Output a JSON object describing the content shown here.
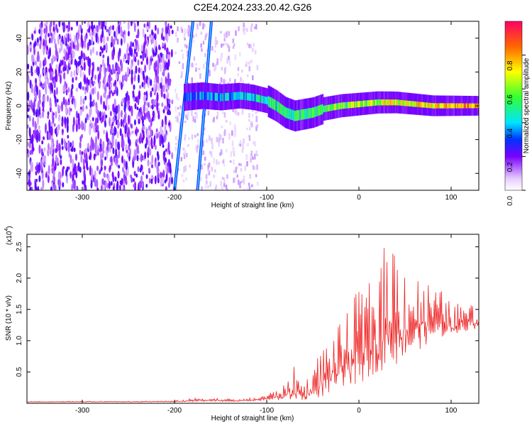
{
  "title": "C2E4.2024.233.20.42.G26",
  "chart_data": [
    {
      "type": "heatmap",
      "xlabel": "Height of straight line (km)",
      "ylabel": "Frequency (Hz)",
      "xlim": [
        -360,
        130
      ],
      "ylim": [
        -50,
        50
      ],
      "xticks": [
        -300,
        -200,
        -100,
        0,
        100
      ],
      "yticks": [
        -40,
        -20,
        0,
        20,
        40
      ],
      "colorbar": {
        "label": "Normalized spectral amplitude",
        "range": [
          0.0,
          1.0
        ],
        "ticks": [
          0.0,
          0.2,
          0.4,
          0.6,
          0.8
        ]
      },
      "ridge": [
        [
          -190,
          5
        ],
        [
          -170,
          6
        ],
        [
          -150,
          5
        ],
        [
          -130,
          6
        ],
        [
          -115,
          5
        ],
        [
          -100,
          3
        ],
        [
          -90,
          0
        ],
        [
          -80,
          -4
        ],
        [
          -70,
          -6
        ],
        [
          -60,
          -5
        ],
        [
          -50,
          -4
        ],
        [
          -40,
          -2
        ],
        [
          -20,
          0
        ],
        [
          0,
          1
        ],
        [
          20,
          2
        ],
        [
          40,
          2
        ],
        [
          60,
          1
        ],
        [
          80,
          0
        ],
        [
          100,
          0
        ],
        [
          130,
          0
        ]
      ],
      "streaks": [
        {
          "x_bottom": -200,
          "x_top": -180
        },
        {
          "x_bottom": -175,
          "x_top": -160
        }
      ]
    },
    {
      "type": "line",
      "xlabel": "Height of straight line (km)",
      "ylabel": "SNR (10 * v/v)",
      "y_multiplier": "(x10",
      "y_multiplier_exp": "4",
      "xlim": [
        -360,
        130
      ],
      "ylim": [
        0,
        2.7
      ],
      "xticks": [
        -300,
        -200,
        -100,
        0,
        100
      ],
      "yticks": [
        0.5,
        1.0,
        1.5,
        2.0,
        2.5
      ],
      "series_color": "#ee2222",
      "envelope": [
        [
          -360,
          0.03
        ],
        [
          -200,
          0.04
        ],
        [
          -170,
          0.1
        ],
        [
          -130,
          0.06
        ],
        [
          -110,
          0.1
        ],
        [
          -100,
          0.15
        ],
        [
          -80,
          0.3
        ],
        [
          -70,
          0.6
        ],
        [
          -60,
          0.3
        ],
        [
          -40,
          0.9
        ],
        [
          -30,
          1.1
        ],
        [
          -20,
          1.3
        ],
        [
          -10,
          1.5
        ],
        [
          0,
          1.9
        ],
        [
          10,
          1.9
        ],
        [
          20,
          2.3
        ],
        [
          30,
          2.6
        ],
        [
          40,
          2.7
        ],
        [
          50,
          2.3
        ],
        [
          60,
          2.1
        ],
        [
          70,
          2.0
        ],
        [
          80,
          1.9
        ],
        [
          90,
          1.8
        ],
        [
          100,
          1.6
        ],
        [
          110,
          1.6
        ],
        [
          120,
          1.6
        ],
        [
          130,
          1.5
        ]
      ],
      "floor": [
        [
          -360,
          0.02
        ],
        [
          -200,
          0.02
        ],
        [
          -130,
          0.03
        ],
        [
          -80,
          0.05
        ],
        [
          -60,
          0.04
        ],
        [
          -40,
          0.1
        ],
        [
          -20,
          0.2
        ],
        [
          0,
          0.3
        ],
        [
          20,
          0.5
        ],
        [
          40,
          0.6
        ],
        [
          60,
          0.8
        ],
        [
          80,
          1.0
        ],
        [
          100,
          1.1
        ],
        [
          130,
          1.2
        ]
      ]
    }
  ]
}
